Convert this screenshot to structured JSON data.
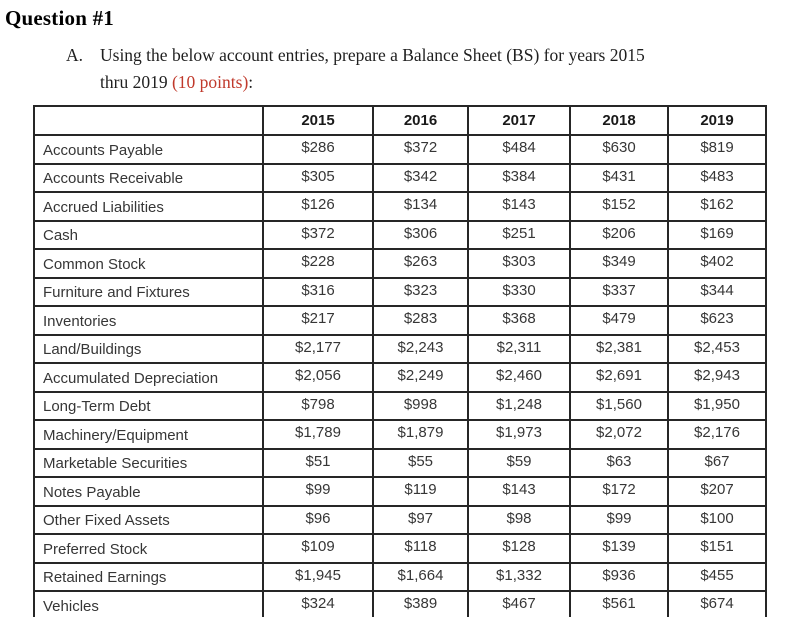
{
  "heading": "Question #1",
  "instruction": {
    "marker": "A.",
    "line1": "Using the below account entries, prepare a Balance Sheet (BS) for years 2015",
    "line2_prefix": "thru 2019 ",
    "points": "(10 points)",
    "suffix": ":"
  },
  "table": {
    "year_headers": [
      "2015",
      "2016",
      "2017",
      "2018",
      "2019"
    ],
    "rows": [
      {
        "label": "Accounts Payable",
        "values": [
          "$286",
          "$372",
          "$484",
          "$630",
          "$819"
        ]
      },
      {
        "label": "Accounts Receivable",
        "values": [
          "$305",
          "$342",
          "$384",
          "$431",
          "$483"
        ]
      },
      {
        "label": "Accrued Liabilities",
        "values": [
          "$126",
          "$134",
          "$143",
          "$152",
          "$162"
        ]
      },
      {
        "label": "Cash",
        "values": [
          "$372",
          "$306",
          "$251",
          "$206",
          "$169"
        ]
      },
      {
        "label": "Common Stock",
        "values": [
          "$228",
          "$263",
          "$303",
          "$349",
          "$402"
        ]
      },
      {
        "label": "Furniture and Fixtures",
        "values": [
          "$316",
          "$323",
          "$330",
          "$337",
          "$344"
        ]
      },
      {
        "label": "Inventories",
        "values": [
          "$217",
          "$283",
          "$368",
          "$479",
          "$623"
        ]
      },
      {
        "label": "Land/Buildings",
        "values": [
          "$2,177",
          "$2,243",
          "$2,311",
          "$2,381",
          "$2,453"
        ]
      },
      {
        "label": "Accumulated Depreciation",
        "values": [
          "$2,056",
          "$2,249",
          "$2,460",
          "$2,691",
          "$2,943"
        ]
      },
      {
        "label": "Long-Term Debt",
        "values": [
          "$798",
          "$998",
          "$1,248",
          "$1,560",
          "$1,950"
        ]
      },
      {
        "label": "Machinery/Equipment",
        "values": [
          "$1,789",
          "$1,879",
          "$1,973",
          "$2,072",
          "$2,176"
        ]
      },
      {
        "label": "Marketable Securities",
        "values": [
          "$51",
          "$55",
          "$59",
          "$63",
          "$67"
        ]
      },
      {
        "label": "Notes Payable",
        "values": [
          "$99",
          "$119",
          "$143",
          "$172",
          "$207"
        ]
      },
      {
        "label": "Other Fixed Assets",
        "values": [
          "$96",
          "$97",
          "$98",
          "$99",
          "$100"
        ]
      },
      {
        "label": "Preferred Stock",
        "values": [
          "$109",
          "$118",
          "$128",
          "$139",
          "$151"
        ]
      },
      {
        "label": "Retained Earnings",
        "values": [
          "$1,945",
          "$1,664",
          "$1,332",
          "$936",
          "$455"
        ]
      },
      {
        "label": "Vehicles",
        "values": [
          "$324",
          "$389",
          "$467",
          "$561",
          "$674"
        ]
      }
    ]
  },
  "colors": {
    "accent_red": "#c0392b",
    "heading_text": "#000000",
    "body_text": "#1f1f1f",
    "table_text": "#363636",
    "table_border": "#262626",
    "background": "#ffffff"
  }
}
